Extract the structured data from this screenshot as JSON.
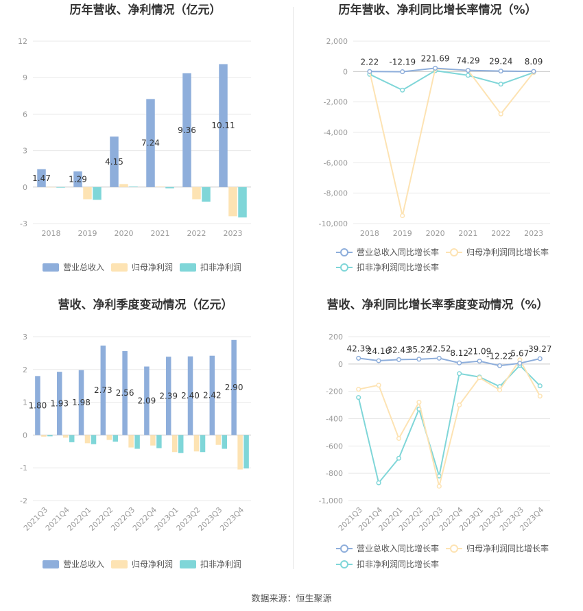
{
  "footer": "数据来源：恒生聚源",
  "colors": {
    "revenue": "#8eaedb",
    "parent_profit": "#fde3b3",
    "deducted_profit": "#7fd6d8",
    "grid": "#e8e8e8",
    "axis": "#999999",
    "label": "#333333"
  },
  "chart_data": [
    {
      "type": "bar",
      "title": "历年营收、净利情况（亿元）",
      "categories": [
        "2018",
        "2019",
        "2020",
        "2021",
        "2022",
        "2023"
      ],
      "series": [
        {
          "name": "营业总收入",
          "values": [
            1.47,
            1.29,
            4.15,
            7.24,
            9.36,
            10.11
          ],
          "labels": [
            "1.47",
            "1.29",
            "4.15",
            "7.24",
            "9.36",
            "10.11"
          ]
        },
        {
          "name": "归母净利润",
          "values": [
            0.0,
            -1.0,
            0.25,
            0.05,
            -1.0,
            -2.4
          ]
        },
        {
          "name": "扣非净利润",
          "values": [
            -0.05,
            -1.05,
            0.05,
            -0.1,
            -1.2,
            -2.5
          ]
        }
      ],
      "yticks": [
        "12",
        "9",
        "6",
        "3",
        "0",
        "-3"
      ],
      "ylim": [
        -3,
        12
      ],
      "legend": "bottom"
    },
    {
      "type": "line",
      "title": "历年营收、净利同比增长率情况（%）",
      "categories": [
        "2018",
        "2019",
        "2020",
        "2021",
        "2022",
        "2023"
      ],
      "series": [
        {
          "name": "营业总收入同比增长率",
          "values": [
            2.22,
            -12.19,
            221.69,
            74.29,
            29.24,
            8.09
          ],
          "labels": [
            "2.22",
            "-12.19",
            "221.69",
            "74.29",
            "29.24",
            "8.09"
          ]
        },
        {
          "name": "归母净利润同比增长率",
          "values": [
            0,
            -9480,
            180,
            80,
            -2790,
            -50
          ]
        },
        {
          "name": "扣非净利润同比增长率",
          "values": [
            -180,
            -1220,
            60,
            -250,
            -830,
            -60
          ]
        }
      ],
      "yticks": [
        "2,000",
        "0",
        "-2,000",
        "-4,000",
        "-6,000",
        "-8,000",
        "-10,000"
      ],
      "ylim": [
        -10000,
        2000
      ],
      "legend": "bottom"
    },
    {
      "type": "bar",
      "title": "营收、净利季度变动情况（亿元）",
      "categories": [
        "2021Q3",
        "2021Q4",
        "2022Q1",
        "2022Q2",
        "2022Q3",
        "2022Q4",
        "2023Q1",
        "2023Q2",
        "2023Q3",
        "2023Q4"
      ],
      "series": [
        {
          "name": "营业总收入",
          "values": [
            1.8,
            1.93,
            1.98,
            2.73,
            2.56,
            2.09,
            2.39,
            2.4,
            2.42,
            2.9
          ],
          "labels": [
            "1.80",
            "1.93",
            "1.98",
            "2.73",
            "2.56",
            "2.09",
            "2.39",
            "2.40",
            "2.42",
            "2.90"
          ]
        },
        {
          "name": "归母净利润",
          "values": [
            -0.05,
            -0.08,
            -0.25,
            -0.15,
            -0.38,
            -0.32,
            -0.52,
            -0.5,
            -0.3,
            -1.05
          ]
        },
        {
          "name": "扣非净利润",
          "values": [
            -0.04,
            -0.22,
            -0.28,
            -0.2,
            -0.42,
            -0.4,
            -0.55,
            -0.52,
            -0.42,
            -1.02
          ]
        }
      ],
      "yticks": [
        "3",
        "2",
        "1",
        "0",
        "-1",
        "-2"
      ],
      "ylim": [
        -2,
        3
      ],
      "legend": "bottom"
    },
    {
      "type": "line",
      "title": "营收、净利同比增长率季度变动情况（%）",
      "categories": [
        "2021Q3",
        "2021Q4",
        "2022Q1",
        "2022Q2",
        "2022Q3",
        "2022Q4",
        "2023Q1",
        "2023Q2",
        "2023Q3",
        "2023Q4"
      ],
      "series": [
        {
          "name": "营业总收入同比增长率",
          "values": [
            42.39,
            24.16,
            32.43,
            35.22,
            42.52,
            8.12,
            21.09,
            -12.22,
            5.67,
            39.27
          ],
          "labels": [
            "42.39",
            "24.16",
            "32.43",
            "35.22",
            "42.52",
            "8.12",
            "21.09",
            "-12.22",
            "5.67",
            "39.27"
          ]
        },
        {
          "name": "归母净利润同比增长率",
          "values": [
            -185,
            -155,
            -545,
            -280,
            -895,
            -300,
            -100,
            -190,
            30,
            -235
          ]
        },
        {
          "name": "扣非净利润同比增长率",
          "values": [
            -245,
            -870,
            -690,
            -330,
            -820,
            -70,
            -95,
            -165,
            -10,
            -160
          ]
        }
      ],
      "yticks": [
        "200",
        "0",
        "-200",
        "-400",
        "-600",
        "-800",
        "-1,000"
      ],
      "ylim": [
        -1000,
        200
      ],
      "legend": "bottom"
    }
  ]
}
